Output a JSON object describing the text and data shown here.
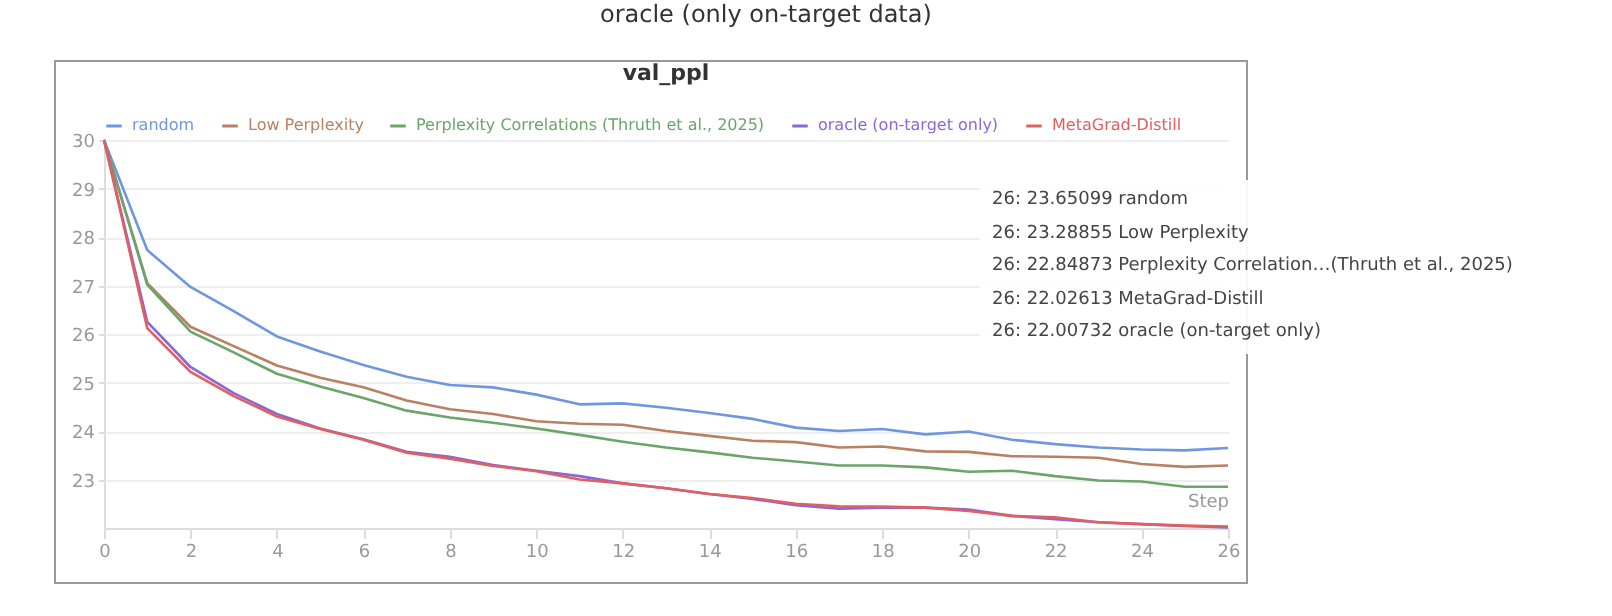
{
  "chart_data": {
    "type": "line",
    "title": "val_ppl",
    "xlabel": "Step",
    "x": [
      0,
      1,
      2,
      3,
      4,
      5,
      6,
      7,
      8,
      9,
      10,
      11,
      12,
      13,
      14,
      15,
      16,
      17,
      18,
      19,
      20,
      21,
      22,
      23,
      24,
      25,
      26
    ],
    "series": [
      {
        "name": "random",
        "color": "#6f97e0",
        "values": [
          30,
          27.73,
          26.97,
          26.47,
          25.95,
          25.64,
          25.36,
          25.12,
          24.95,
          24.9,
          24.75,
          24.55,
          24.57,
          24.48,
          24.37,
          24.25,
          24.07,
          24.0,
          24.04,
          23.93,
          23.99,
          23.82,
          23.73,
          23.66,
          23.62,
          23.6,
          23.65
        ]
      },
      {
        "name": "Low Perplexity",
        "color": "#b98062",
        "values": [
          30,
          27.05,
          26.15,
          25.75,
          25.35,
          25.1,
          24.9,
          24.63,
          24.45,
          24.35,
          24.2,
          24.15,
          24.13,
          24.0,
          23.9,
          23.8,
          23.77,
          23.66,
          23.68,
          23.58,
          23.57,
          23.48,
          23.47,
          23.45,
          23.32,
          23.26,
          23.29
        ]
      },
      {
        "name": "Perplexity Correlations (Thruth et al., 2025)",
        "color": "#6aa56a",
        "values": [
          30,
          27.02,
          26.05,
          25.62,
          25.18,
          24.92,
          24.68,
          24.42,
          24.28,
          24.17,
          24.05,
          23.92,
          23.78,
          23.66,
          23.56,
          23.45,
          23.37,
          23.29,
          23.29,
          23.25,
          23.16,
          23.18,
          23.07,
          22.98,
          22.96,
          22.85,
          22.85
        ]
      },
      {
        "name": "oracle (on-target only)",
        "color": "#8b67d6",
        "values": [
          30,
          26.25,
          25.32,
          24.78,
          24.35,
          24.05,
          23.83,
          23.57,
          23.47,
          23.3,
          23.18,
          23.07,
          22.92,
          22.82,
          22.7,
          22.6,
          22.47,
          22.4,
          22.42,
          22.42,
          22.38,
          22.25,
          22.18,
          22.12,
          22.08,
          22.04,
          22.01
        ]
      },
      {
        "name": "MetaGrad-Distill",
        "color": "#e06060",
        "values": [
          30,
          26.12,
          25.22,
          24.72,
          24.3,
          24.04,
          23.82,
          23.55,
          23.43,
          23.28,
          23.17,
          23.0,
          22.92,
          22.82,
          22.7,
          22.62,
          22.5,
          22.45,
          22.44,
          22.42,
          22.35,
          22.25,
          22.22,
          22.12,
          22.08,
          22.05,
          22.03
        ]
      }
    ],
    "xlim": [
      0,
      26
    ],
    "xticks": [
      0,
      2,
      4,
      6,
      8,
      10,
      12,
      14,
      16,
      18,
      20,
      22,
      24,
      26
    ],
    "ylim": [
      22,
      30
    ],
    "yticks": [
      23,
      24,
      25,
      26,
      27,
      28,
      29,
      30
    ],
    "grid": "y",
    "legend": "top",
    "annotations": [
      "oracle (only on-target data)",
      "26: 23.65099 random",
      "26: 23.28855 Low Perplexity",
      "26: 22.84873 Perplexity Correlation…(Thruth et al., 2025)",
      "26: 22.02613 MetaGrad-Distill",
      "26: 22.00732 oracle (on-target only)"
    ]
  }
}
